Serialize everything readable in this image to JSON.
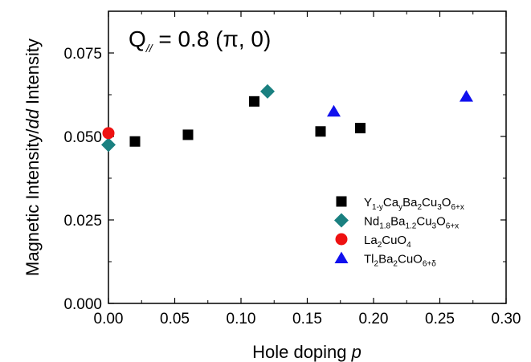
{
  "chart_data": {
    "type": "scatter",
    "annotation": {
      "main": "Q",
      "sub": "//",
      "rest": " = 0.8 (π, 0)"
    },
    "xlabel": {
      "text": "Hole doping ",
      "italic": "p"
    },
    "ylabel": {
      "pre": "Magnetic Intensity/",
      "italic": "dd",
      "post": " Intensity"
    },
    "xlim": [
      0,
      0.3
    ],
    "ylim": [
      0,
      0.0875
    ],
    "xticks": [
      0.0,
      0.05,
      0.1,
      0.15,
      0.2,
      0.25,
      0.3
    ],
    "xtick_labels": [
      "0.00",
      "0.05",
      "0.10",
      "0.15",
      "0.20",
      "0.25",
      "0.30"
    ],
    "yticks": [
      0.0,
      0.025,
      0.05,
      0.075
    ],
    "ytick_labels": [
      "0.000",
      "0.025",
      "0.050",
      "0.075"
    ],
    "grid": false,
    "legend_placement": "bottom-right",
    "series": [
      {
        "marker": "square",
        "color": "#000000",
        "legend": [
          [
            "Y",
            ""
          ],
          [
            "1-y",
            "sub"
          ],
          [
            "Ca",
            ""
          ],
          [
            "y",
            "sub"
          ],
          [
            "Ba",
            ""
          ],
          [
            "2",
            "sub"
          ],
          [
            "Cu",
            ""
          ],
          [
            "3",
            "sub"
          ],
          [
            "O",
            ""
          ],
          [
            "6+x",
            "sub"
          ]
        ],
        "points": [
          [
            0.02,
            0.0485
          ],
          [
            0.06,
            0.0505
          ],
          [
            0.11,
            0.0605
          ],
          [
            0.16,
            0.0515
          ],
          [
            0.19,
            0.0525
          ]
        ]
      },
      {
        "marker": "diamond",
        "color": "#1a8080",
        "legend": [
          [
            "Nd",
            ""
          ],
          [
            "1.8",
            "sub"
          ],
          [
            "Ba",
            ""
          ],
          [
            "1.2",
            "sub"
          ],
          [
            "Cu",
            ""
          ],
          [
            "3",
            "sub"
          ],
          [
            "O",
            ""
          ],
          [
            "6+x",
            "sub"
          ]
        ],
        "points": [
          [
            0.0,
            0.0475
          ],
          [
            0.12,
            0.0635
          ]
        ]
      },
      {
        "marker": "circle",
        "color": "#ee1111",
        "legend": [
          [
            "La",
            ""
          ],
          [
            "2",
            "sub"
          ],
          [
            "CuO",
            ""
          ],
          [
            "4",
            "sub"
          ]
        ],
        "points": [
          [
            0.0,
            0.051
          ]
        ]
      },
      {
        "marker": "triangle",
        "color": "#1010ee",
        "legend": [
          [
            "Tl",
            ""
          ],
          [
            "2",
            "sub"
          ],
          [
            "Ba",
            ""
          ],
          [
            "2",
            "sub"
          ],
          [
            "CuO",
            ""
          ],
          [
            "6+δ",
            "sub"
          ]
        ],
        "points": [
          [
            0.17,
            0.0575
          ],
          [
            0.27,
            0.062
          ]
        ]
      }
    ]
  }
}
